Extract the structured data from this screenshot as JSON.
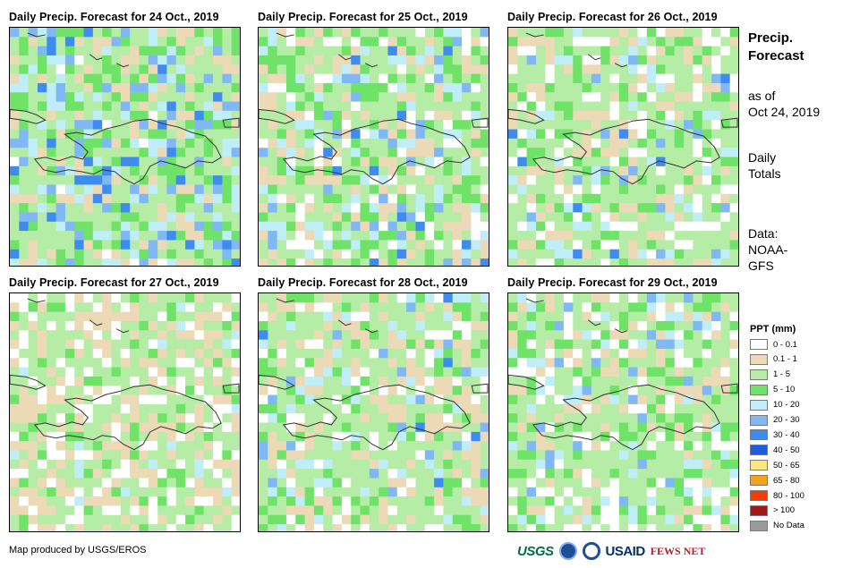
{
  "panels": [
    {
      "title": "Daily Precip. Forecast for 24 Oct., 2019"
    },
    {
      "title": "Daily Precip. Forecast for 25 Oct., 2019"
    },
    {
      "title": "Daily Precip. Forecast for 26 Oct., 2019"
    },
    {
      "title": "Daily Precip. Forecast for 27 Oct., 2019"
    },
    {
      "title": "Daily Precip. Forecast for 28 Oct., 2019"
    },
    {
      "title": "Daily Precip. Forecast for 29 Oct., 2019"
    }
  ],
  "sidebar": {
    "title_line1": "Precip.",
    "title_line2": "Forecast",
    "asof_line1": "as of",
    "asof_line2": "Oct 24, 2019",
    "totals_line1": "Daily",
    "totals_line2": "Totals",
    "data_line1": "Data:",
    "data_line2": "NOAA-",
    "data_line3": "GFS"
  },
  "legend": {
    "title": "PPT (mm)",
    "items": [
      {
        "label": "0 - 0.1",
        "color": "#ffffff"
      },
      {
        "label": "0.1 - 1",
        "color": "#ecd9b6"
      },
      {
        "label": "1 - 5",
        "color": "#b5eca6"
      },
      {
        "label": "5 - 10",
        "color": "#6fe368"
      },
      {
        "label": "10 - 20",
        "color": "#bfeef8"
      },
      {
        "label": "20 - 30",
        "color": "#7fb8f5"
      },
      {
        "label": "30 - 40",
        "color": "#3f8cf0"
      },
      {
        "label": "40 - 50",
        "color": "#1a5fe0"
      },
      {
        "label": "50 - 65",
        "color": "#fde77d"
      },
      {
        "label": "65 - 80",
        "color": "#f7a21b"
      },
      {
        "label": "80 - 100",
        "color": "#f03d0c"
      },
      {
        "label": "> 100",
        "color": "#a11616"
      },
      {
        "label": "No Data",
        "color": "#9a9a9a"
      }
    ]
  },
  "footer": {
    "credit": "Map produced by USGS/EROS"
  },
  "logos": {
    "usgs": "USGS",
    "usaid": "USAID",
    "fews": "FEWS NET"
  }
}
